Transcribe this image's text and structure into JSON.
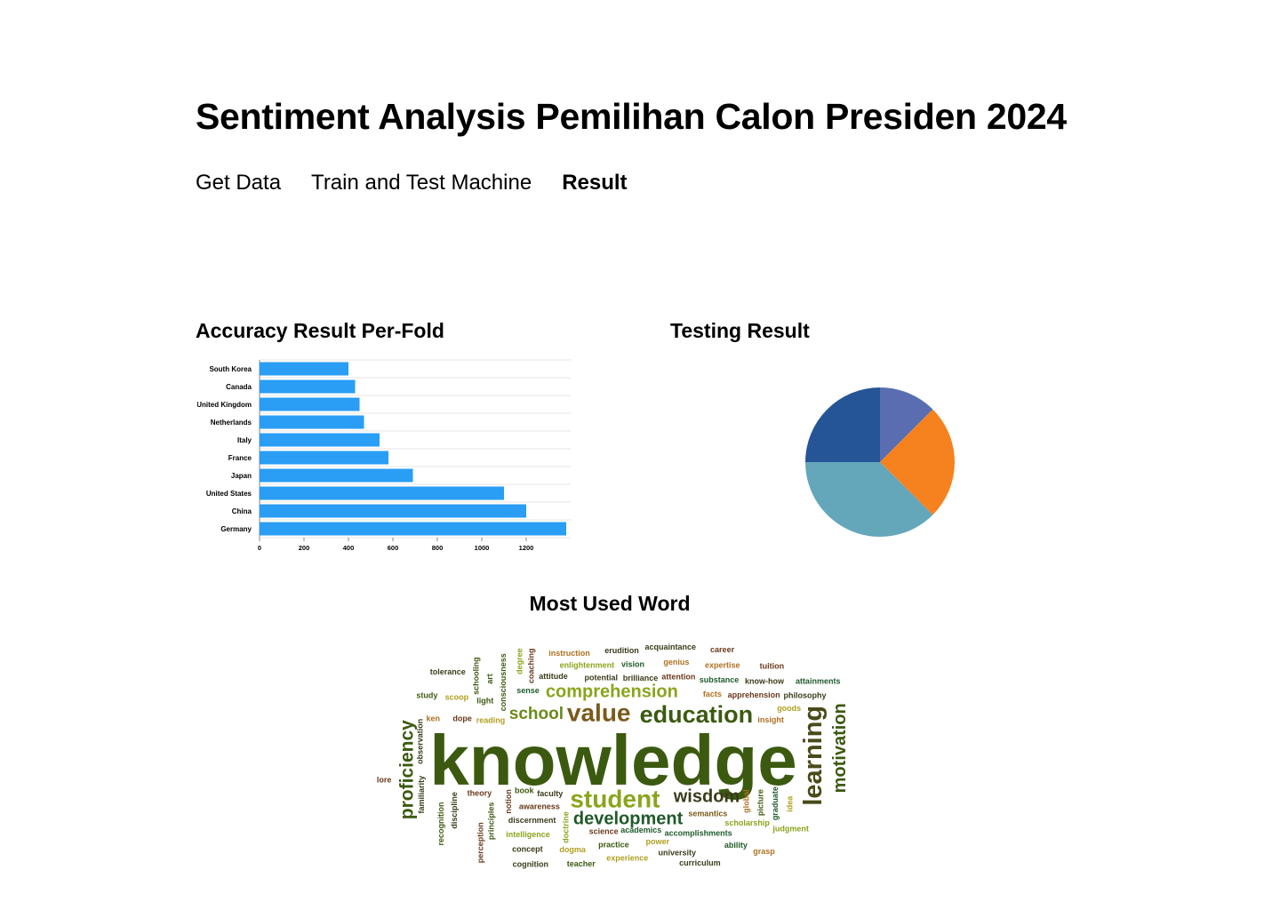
{
  "header": {
    "title": "Sentiment Analysis Pemilihan Calon Presiden 2024"
  },
  "nav": {
    "items": [
      {
        "label": "Get Data",
        "active": false
      },
      {
        "label": "Train and Test Machine",
        "active": false
      },
      {
        "label": "Result",
        "active": true
      }
    ]
  },
  "sections": {
    "accuracy_title": "Accuracy Result Per-Fold",
    "testing_title": "Testing Result",
    "words_title": "Most Used Word"
  },
  "colors": {
    "bar": "#2a9df4",
    "grid": "#e6e6e6",
    "pie": [
      "#5a6db0",
      "#f5821f",
      "#64a7bb",
      "#255597"
    ]
  },
  "chart_data": [
    {
      "type": "bar",
      "orientation": "horizontal",
      "categories": [
        "South Korea",
        "Canada",
        "United Kingdom",
        "Netherlands",
        "Italy",
        "France",
        "Japan",
        "United States",
        "China",
        "Germany"
      ],
      "values": [
        400,
        430,
        450,
        470,
        540,
        580,
        690,
        1100,
        1200,
        1380
      ],
      "xticks": [
        0,
        200,
        400,
        600,
        800,
        1000,
        1200
      ],
      "xlim": [
        0,
        1400
      ],
      "grid": true
    },
    {
      "type": "pie",
      "values": [
        12.5,
        25,
        37.5,
        25
      ]
    }
  ],
  "wordcloud": {
    "words": [
      {
        "text": "knowledge",
        "size": 80,
        "color": "#3b5a10"
      },
      {
        "text": "education",
        "size": 27,
        "color": "#3b5a10"
      },
      {
        "text": "learning",
        "size": 29,
        "color": "#4a4a1a"
      },
      {
        "text": "proficiency",
        "size": 21,
        "color": "#3b5a10"
      },
      {
        "text": "development",
        "size": 20,
        "color": "#1f5a2a"
      },
      {
        "text": "wisdom",
        "size": 20,
        "color": "#3b3b1a"
      },
      {
        "text": "school",
        "size": 19,
        "color": "#6a8a1a"
      },
      {
        "text": "student",
        "size": 28,
        "color": "#8aa41c"
      },
      {
        "text": "comprehension",
        "size": 20,
        "color": "#8aa41c"
      },
      {
        "text": "motivation",
        "size": 20,
        "color": "#3b5a10"
      },
      {
        "text": "value",
        "size": 28,
        "color": "#7a5a1a"
      },
      {
        "text": "faculty",
        "size": 9,
        "color": "#3b3b1a"
      },
      {
        "text": "awareness",
        "size": 9,
        "color": "#6a3a1a"
      },
      {
        "text": "notion",
        "size": 9,
        "color": "#6a3a1a"
      },
      {
        "text": "semantics",
        "size": 9,
        "color": "#7a5a1a"
      },
      {
        "text": "academics",
        "size": 9,
        "color": "#1f5a2a"
      },
      {
        "text": "reading",
        "size": 9,
        "color": "#b0a020"
      },
      {
        "text": "doctrine",
        "size": 9,
        "color": "#8aa41c"
      },
      {
        "text": "science",
        "size": 9,
        "color": "#6a3a1a"
      },
      {
        "text": "discernment",
        "size": 9,
        "color": "#3b3b1a"
      },
      {
        "text": "theory",
        "size": 9,
        "color": "#6a3a1a"
      },
      {
        "text": "principles",
        "size": 9,
        "color": "#3b5a10"
      },
      {
        "text": "book",
        "size": 9,
        "color": "#3b5a10"
      },
      {
        "text": "sense",
        "size": 9,
        "color": "#1f5a2a"
      },
      {
        "text": "potential",
        "size": 9,
        "color": "#3b3b1a"
      },
      {
        "text": "consciousness",
        "size": 9,
        "color": "#3b5a10"
      },
      {
        "text": "brilliance",
        "size": 9,
        "color": "#3b3b1a"
      },
      {
        "text": "facts",
        "size": 9,
        "color": "#b07020"
      },
      {
        "text": "accomplishments",
        "size": 9,
        "color": "#1f5a2a"
      },
      {
        "text": "global",
        "size": 9,
        "color": "#b07020"
      },
      {
        "text": "attitude",
        "size": 9,
        "color": "#3b3b1a"
      },
      {
        "text": "dope",
        "size": 9,
        "color": "#6a3a1a"
      },
      {
        "text": "light",
        "size": 9,
        "color": "#3b5a10"
      },
      {
        "text": "discipline",
        "size": 9,
        "color": "#3b3b1a"
      },
      {
        "text": "attention",
        "size": 9,
        "color": "#6a3a1a"
      },
      {
        "text": "insight",
        "size": 9,
        "color": "#b07020"
      },
      {
        "text": "power",
        "size": 9,
        "color": "#b0a020"
      },
      {
        "text": "observation",
        "size": 9,
        "color": "#3b3b1a"
      },
      {
        "text": "practice",
        "size": 9,
        "color": "#3b5a10"
      },
      {
        "text": "intelligence",
        "size": 9,
        "color": "#8aa41c"
      },
      {
        "text": "enlightenment",
        "size": 9,
        "color": "#8aa41c"
      },
      {
        "text": "graduate",
        "size": 9,
        "color": "#1f5a2a"
      },
      {
        "text": "substance",
        "size": 9,
        "color": "#1f5a2a"
      },
      {
        "text": "apprehension",
        "size": 9,
        "color": "#6a3a1a"
      },
      {
        "text": "scholarship",
        "size": 9,
        "color": "#8aa41c"
      },
      {
        "text": "coaching",
        "size": 9,
        "color": "#6a3a1a"
      },
      {
        "text": "vision",
        "size": 9,
        "color": "#1f5a2a"
      },
      {
        "text": "dogma",
        "size": 9,
        "color": "#b0a020"
      },
      {
        "text": "scoop",
        "size": 9,
        "color": "#b0a020"
      },
      {
        "text": "familiarity",
        "size": 9,
        "color": "#3b3b1a"
      },
      {
        "text": "genius",
        "size": 9,
        "color": "#b07020"
      },
      {
        "text": "university",
        "size": 9,
        "color": "#3b3b1a"
      },
      {
        "text": "experience",
        "size": 9,
        "color": "#b0a020"
      },
      {
        "text": "schooling",
        "size": 9,
        "color": "#3b5a10"
      },
      {
        "text": "concept",
        "size": 9,
        "color": "#3b3b1a"
      },
      {
        "text": "goods",
        "size": 9,
        "color": "#b0a020"
      },
      {
        "text": "instruction",
        "size": 9,
        "color": "#b07020"
      },
      {
        "text": "perception",
        "size": 9,
        "color": "#6a3a1a"
      },
      {
        "text": "erudition",
        "size": 9,
        "color": "#3b3b1a"
      },
      {
        "text": "expertise",
        "size": 9,
        "color": "#b07020"
      },
      {
        "text": "know-how",
        "size": 9,
        "color": "#3b3b1a"
      },
      {
        "text": "picture",
        "size": 9,
        "color": "#3b5a10"
      },
      {
        "text": "ability",
        "size": 9,
        "color": "#1f5a2a"
      },
      {
        "text": "teacher",
        "size": 9,
        "color": "#3b5a10"
      },
      {
        "text": "ken",
        "size": 9,
        "color": "#b07020"
      },
      {
        "text": "art",
        "size": 9,
        "color": "#3b5a10"
      },
      {
        "text": "acquaintance",
        "size": 9,
        "color": "#3b3b1a"
      },
      {
        "text": "philosophy",
        "size": 9,
        "color": "#3b3b1a"
      },
      {
        "text": "curriculum",
        "size": 9,
        "color": "#3b3b1a"
      },
      {
        "text": "recognition",
        "size": 9,
        "color": "#3b5a10"
      },
      {
        "text": "judgment",
        "size": 9,
        "color": "#8aa41c"
      },
      {
        "text": "cognition",
        "size": 9,
        "color": "#3b3b1a"
      },
      {
        "text": "study",
        "size": 9,
        "color": "#3b5a10"
      },
      {
        "text": "idea",
        "size": 9,
        "color": "#b0a020"
      },
      {
        "text": "tolerance",
        "size": 9,
        "color": "#3b3b1a"
      },
      {
        "text": "career",
        "size": 9,
        "color": "#6a3a1a"
      },
      {
        "text": "tuition",
        "size": 9,
        "color": "#6a3a1a"
      },
      {
        "text": "degree",
        "size": 9,
        "color": "#8aa41c"
      },
      {
        "text": "attainments",
        "size": 9,
        "color": "#1f5a2a"
      },
      {
        "text": "lore",
        "size": 9,
        "color": "#6a3a1a"
      },
      {
        "text": "grasp",
        "size": 9,
        "color": "#b07020"
      }
    ]
  }
}
